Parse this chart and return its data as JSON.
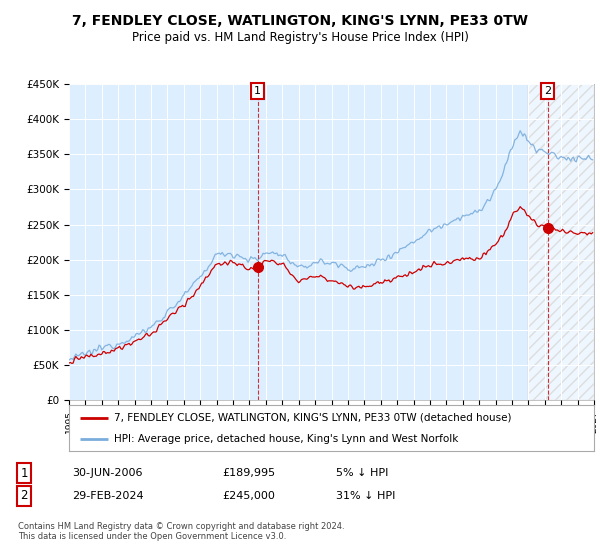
{
  "title": "7, FENDLEY CLOSE, WATLINGTON, KING'S LYNN, PE33 0TW",
  "subtitle": "Price paid vs. HM Land Registry's House Price Index (HPI)",
  "legend_line1": "7, FENDLEY CLOSE, WATLINGTON, KING'S LYNN, PE33 0TW (detached house)",
  "legend_line2": "HPI: Average price, detached house, King's Lynn and West Norfolk",
  "annotation1_label": "1",
  "annotation1_date": "30-JUN-2006",
  "annotation1_price": "£189,995",
  "annotation1_hpi": "5% ↓ HPI",
  "annotation2_label": "2",
  "annotation2_date": "29-FEB-2024",
  "annotation2_price": "£245,000",
  "annotation2_hpi": "31% ↓ HPI",
  "footer": "Contains HM Land Registry data © Crown copyright and database right 2024.\nThis data is licensed under the Open Government Licence v3.0.",
  "sale1_year": 2006.5,
  "sale2_year": 2024.167,
  "sale1_price": 189995,
  "sale2_price": 245000,
  "ylim_min": 0,
  "ylim_max": 450000,
  "xlim_min": 1995,
  "xlim_max": 2027,
  "hpi_color": "#7aaddc",
  "property_color": "#cc0000",
  "background_color": "#ffffff",
  "chart_bg_color": "#ddeeff",
  "grid_color": "#ffffff",
  "sale_marker_color": "#cc0000",
  "annotation_box_color": "#cc0000",
  "hatch_color": "#cccccc"
}
